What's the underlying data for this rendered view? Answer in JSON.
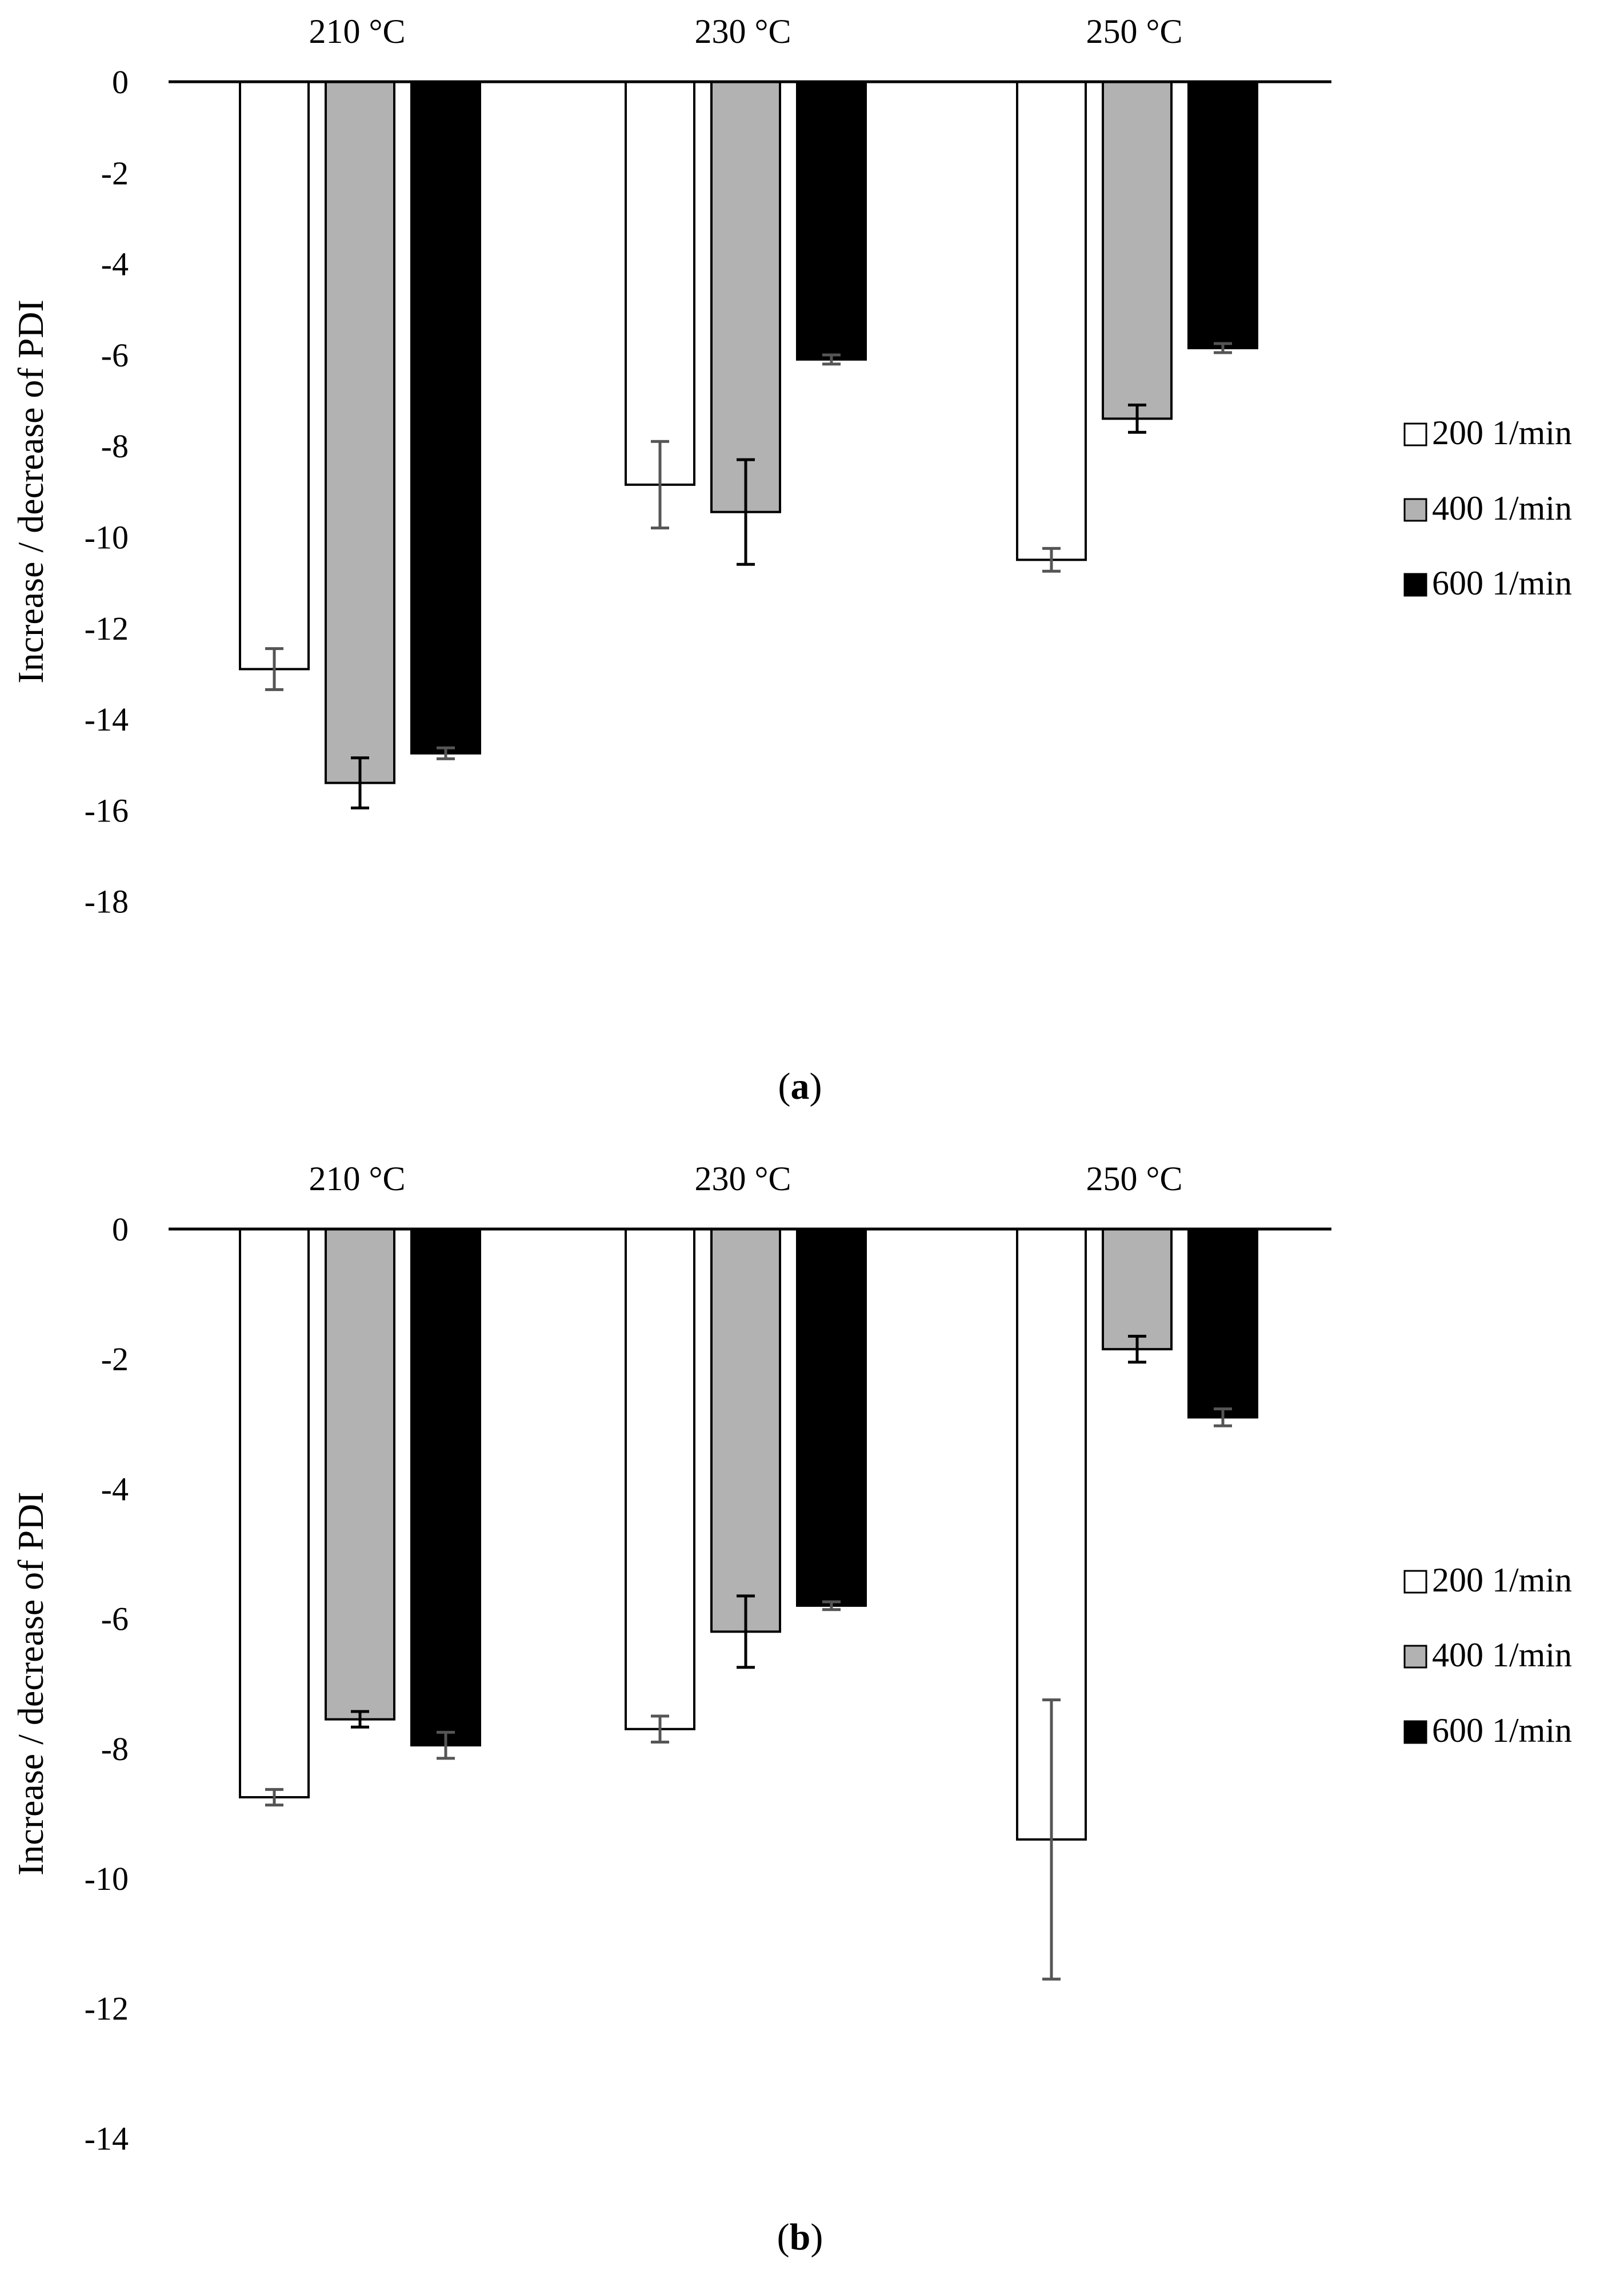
{
  "figure": {
    "panels": [
      {
        "label_open": "(",
        "label_letter": "a",
        "label_close": ")"
      },
      {
        "label_open": "(",
        "label_letter": "b",
        "label_close": ")"
      }
    ]
  },
  "chart_data": [
    {
      "type": "bar",
      "panel": "a",
      "title": "",
      "xlabel": "",
      "ylabel": "Increase / decrease of  PDI",
      "categories": [
        "210 °C",
        "230 °C",
        "250 °C"
      ],
      "ylim": [
        -18,
        0
      ],
      "yticks": [
        0,
        -2,
        -4,
        -6,
        -8,
        -10,
        -12,
        -14,
        -16,
        -18
      ],
      "ytick_labels": [
        "0",
        "-2",
        "-4",
        "-6",
        "-8",
        "-10",
        "-12",
        "-14",
        "-16",
        "-18"
      ],
      "grid": false,
      "legend_position": "right",
      "series": [
        {
          "name": "200 1/min",
          "color": "#ffffff",
          "values": [
            -12.9,
            -8.85,
            -10.5
          ],
          "errors": [
            0.45,
            0.95,
            0.25
          ]
        },
        {
          "name": "400 1/min",
          "color": "#b2b2b2",
          "values": [
            -15.4,
            -9.45,
            -7.4
          ],
          "errors": [
            0.55,
            1.15,
            0.3
          ]
        },
        {
          "name": "600 1/min",
          "color": "#000000",
          "values": [
            -14.75,
            -6.1,
            -5.85
          ],
          "errors": [
            0.12,
            0.1,
            0.1
          ]
        }
      ]
    },
    {
      "type": "bar",
      "panel": "b",
      "title": "",
      "xlabel": "",
      "ylabel": "Increase / decrease of  PDI",
      "categories": [
        "210 °C",
        "230 °C",
        "250 °C"
      ],
      "ylim": [
        -14,
        0
      ],
      "yticks": [
        0,
        -2,
        -4,
        -6,
        -8,
        -10,
        -12,
        -14
      ],
      "ytick_labels": [
        "0",
        "-2",
        "-4",
        "-6",
        "-8",
        "-10",
        "-12",
        "-14"
      ],
      "grid": false,
      "legend_position": "right",
      "series": [
        {
          "name": "200 1/min",
          "color": "#ffffff",
          "values": [
            -8.75,
            -7.7,
            -9.4
          ],
          "errors": [
            0.12,
            0.2,
            2.15
          ]
        },
        {
          "name": "400 1/min",
          "color": "#b2b2b2",
          "values": [
            -7.55,
            -6.2,
            -1.85
          ],
          "errors": [
            0.12,
            0.55,
            0.2
          ]
        },
        {
          "name": "600 1/min",
          "color": "#000000",
          "values": [
            -7.95,
            -5.8,
            -2.9
          ],
          "errors": [
            0.2,
            0.06,
            0.13
          ]
        }
      ]
    }
  ]
}
